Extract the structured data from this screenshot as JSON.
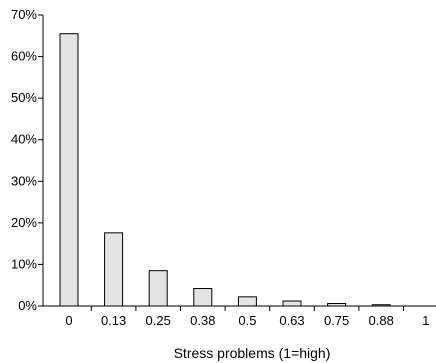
{
  "chart_data": {
    "type": "bar",
    "categories": [
      "0",
      "0.13",
      "0.25",
      "0.38",
      "0.5",
      "0.63",
      "0.75",
      "0.88",
      "1"
    ],
    "values": [
      65.5,
      17.6,
      8.5,
      4.2,
      2.2,
      1.2,
      0.6,
      0.3,
      0
    ],
    "y_ticks": [
      "0%",
      "10%",
      "20%",
      "30%",
      "40%",
      "50%",
      "60%",
      "70%"
    ],
    "ylim": [
      0,
      70
    ],
    "xlabel": "Stress problems (1=high)",
    "ylabel": "",
    "title": "",
    "grid": false,
    "colors": {
      "bar_fill": "#e4e4e4",
      "bar_stroke": "#000000",
      "axis": "#000000"
    }
  }
}
